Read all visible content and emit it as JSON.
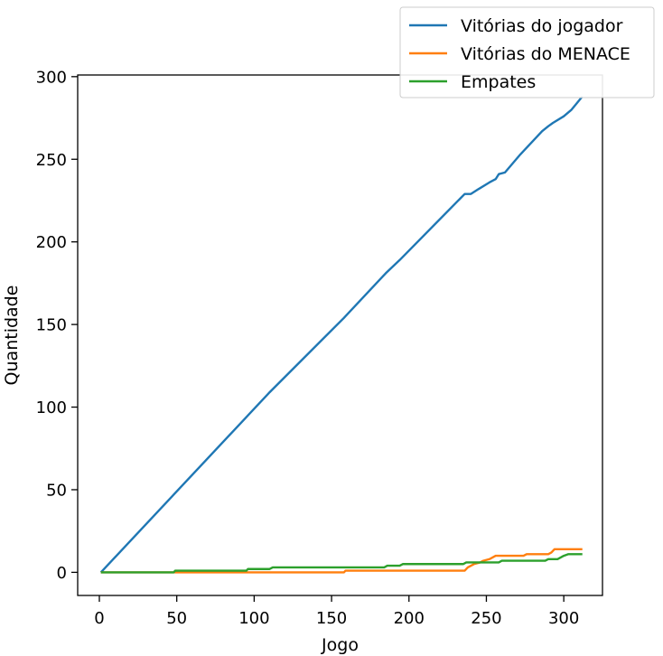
{
  "chart_data": {
    "type": "line",
    "title": "",
    "xlabel": "Jogo",
    "ylabel": "Quantidade",
    "xlim": [
      -14,
      325
    ],
    "ylim": [
      -14,
      301
    ],
    "xticks": [
      0,
      50,
      100,
      150,
      200,
      250,
      300
    ],
    "yticks": [
      0,
      50,
      100,
      150,
      200,
      250,
      300
    ],
    "grid": false,
    "legend_position": "top-right",
    "series": [
      {
        "name": "Vitórias do jogador",
        "color": "#1f77b4",
        "points": [
          [
            1,
            0
          ],
          [
            47,
            46
          ],
          [
            48,
            47
          ],
          [
            95,
            94
          ],
          [
            96,
            95
          ],
          [
            109,
            108
          ],
          [
            110,
            109
          ],
          [
            158,
            154
          ],
          [
            159,
            155
          ],
          [
            183,
            179
          ],
          [
            185,
            181
          ],
          [
            194,
            189
          ],
          [
            236,
            229
          ],
          [
            240,
            229
          ],
          [
            245,
            232
          ],
          [
            252,
            236
          ],
          [
            256,
            238
          ],
          [
            258,
            241
          ],
          [
            262,
            242
          ],
          [
            272,
            253
          ],
          [
            286,
            267
          ],
          [
            290,
            270
          ],
          [
            293,
            272
          ],
          [
            300,
            276
          ],
          [
            305,
            280
          ],
          [
            312,
            288
          ]
        ]
      },
      {
        "name": "Vitórias do MENACE",
        "color": "#ff7f0e",
        "points": [
          [
            1,
            0
          ],
          [
            158,
            0
          ],
          [
            159,
            1
          ],
          [
            236,
            1
          ],
          [
            238,
            3
          ],
          [
            242,
            5
          ],
          [
            246,
            6
          ],
          [
            248,
            7
          ],
          [
            252,
            8
          ],
          [
            256,
            10
          ],
          [
            274,
            10
          ],
          [
            276,
            11
          ],
          [
            290,
            11
          ],
          [
            292,
            12
          ],
          [
            294,
            14
          ],
          [
            312,
            14
          ]
        ]
      },
      {
        "name": "Empates",
        "color": "#2ca02c",
        "points": [
          [
            1,
            0
          ],
          [
            48,
            0
          ],
          [
            49,
            1
          ],
          [
            95,
            1
          ],
          [
            96,
            2
          ],
          [
            110,
            2
          ],
          [
            112,
            3
          ],
          [
            184,
            3
          ],
          [
            186,
            4
          ],
          [
            194,
            4
          ],
          [
            196,
            5
          ],
          [
            235,
            5
          ],
          [
            237,
            6
          ],
          [
            258,
            6
          ],
          [
            260,
            7
          ],
          [
            288,
            7
          ],
          [
            290,
            8
          ],
          [
            296,
            8
          ],
          [
            298,
            9
          ],
          [
            300,
            10
          ],
          [
            303,
            11
          ],
          [
            312,
            11
          ]
        ]
      }
    ]
  }
}
